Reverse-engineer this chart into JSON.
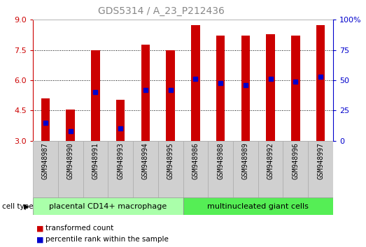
{
  "title": "GDS5314 / A_23_P212436",
  "samples": [
    "GSM948987",
    "GSM948990",
    "GSM948991",
    "GSM948993",
    "GSM948994",
    "GSM948995",
    "GSM948986",
    "GSM948988",
    "GSM948989",
    "GSM948992",
    "GSM948996",
    "GSM948997"
  ],
  "transformed_count": [
    5.1,
    4.55,
    7.5,
    5.05,
    7.75,
    7.5,
    8.75,
    8.2,
    8.2,
    8.3,
    8.2,
    8.75
  ],
  "percentile_rank": [
    15,
    8,
    40,
    10,
    42,
    42,
    51,
    48,
    46,
    51,
    49,
    53
  ],
  "groups": [
    {
      "name": "placental CD14+ macrophage",
      "indices": [
        0,
        1,
        2,
        3,
        4,
        5
      ],
      "color": "#aaffaa"
    },
    {
      "name": "multinucleated giant cells",
      "indices": [
        6,
        7,
        8,
        9,
        10,
        11
      ],
      "color": "#55ee55"
    }
  ],
  "ymin": 3,
  "ymax": 9,
  "y_ticks": [
    3,
    4.5,
    6,
    7.5,
    9
  ],
  "y_ticks_right": [
    0,
    25,
    50,
    75,
    100
  ],
  "bar_color": "#cc0000",
  "dot_color": "#0000cc",
  "bg_color": "#ffffff",
  "plot_bg": "#ffffff",
  "left_axis_color": "#cc0000",
  "right_axis_color": "#0000cc",
  "cell_type_label": "cell type",
  "legend_items": [
    {
      "label": "transformed count",
      "color": "#cc0000"
    },
    {
      "label": "percentile rank within the sample",
      "color": "#0000cc"
    }
  ],
  "title_color": "#888888",
  "title_fontsize": 10,
  "label_fontsize": 7,
  "group_fontsize": 8,
  "legend_fontsize": 7.5,
  "bar_width": 0.35
}
